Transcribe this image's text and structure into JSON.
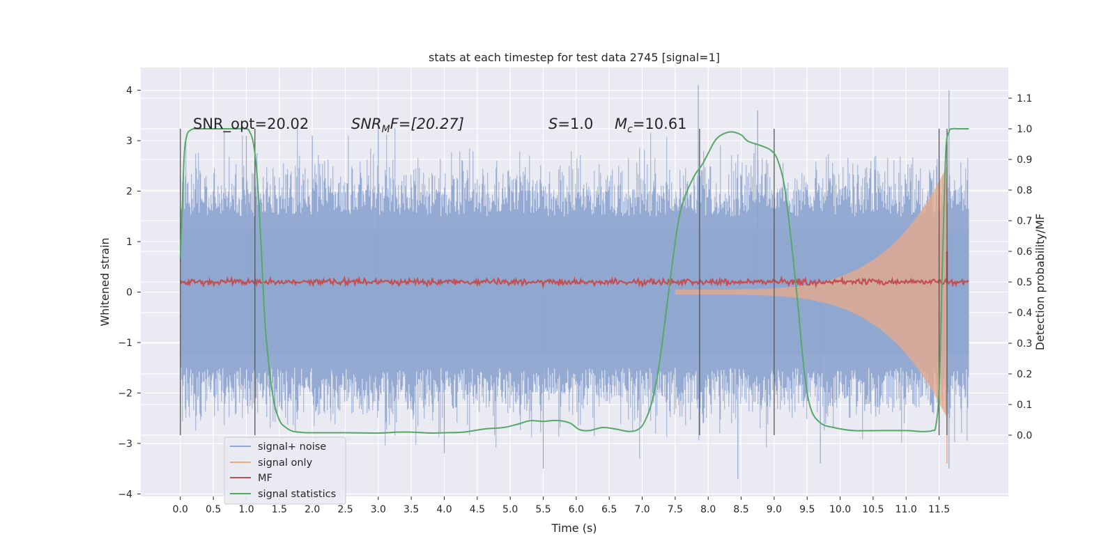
{
  "chart_data": {
    "type": "line",
    "title": "stats at each timestep for test data 2745 [signal=1]",
    "xlabel": "Time (s)",
    "ylabel": "Whitened strain",
    "ylabel_right": "Detection probability/MF",
    "xlim": [
      -0.6,
      12.55
    ],
    "ylim": [
      -4.05,
      4.45
    ],
    "ylim_right": [
      -0.2,
      1.2
    ],
    "x_ticks": [
      "0.0",
      "0.5",
      "1.0",
      "1.5",
      "2.0",
      "2.5",
      "3.0",
      "3.5",
      "4.0",
      "4.5",
      "5.0",
      "5.5",
      "6.0",
      "6.5",
      "7.0",
      "7.5",
      "8.0",
      "8.5",
      "9.0",
      "9.5",
      "10.0",
      "10.5",
      "11.0",
      "11.5"
    ],
    "y_ticks": [
      "4",
      "3",
      "2",
      "1",
      "0",
      "−1",
      "−2",
      "−3",
      "−4"
    ],
    "y_ticks_right": [
      "1.1",
      "1.0",
      "0.9",
      "0.8",
      "0.7",
      "0.6",
      "0.5",
      "0.4",
      "0.3",
      "0.2",
      "0.1",
      "0.0"
    ],
    "annotations": {
      "snr_opt": "SNR_opt=20.02",
      "snr_mf_sym": "SNR",
      "snr_mf_sub": "M",
      "snr_mf_rest": "F=[20.27]",
      "s_sym": "S",
      "s_rest": "=1.0",
      "mc_sym": "M",
      "mc_sub": "c",
      "mc_rest": "=10.61"
    },
    "vertical_lines_x": [
      0.0,
      1.13,
      7.87,
      9.0,
      11.5,
      11.62
    ],
    "legend": [
      {
        "label": "signal+ noise",
        "color": "#8fa6d0"
      },
      {
        "label": "signal only",
        "color": "#e8a98a"
      },
      {
        "label": "MF",
        "color": "#c44e52"
      },
      {
        "label": "signal statistics",
        "color": "#55a868"
      }
    ],
    "series": [
      {
        "name": "signal statistics",
        "axis": "right",
        "color": "#55a868",
        "x": [
          0.0,
          0.03,
          0.06,
          0.1,
          0.15,
          0.2,
          0.3,
          0.5,
          0.8,
          1.0,
          1.05,
          1.1,
          1.15,
          1.2,
          1.25,
          1.3,
          1.4,
          1.5,
          1.6,
          1.7,
          1.8,
          1.9,
          2.0,
          2.2,
          2.5,
          3.0,
          3.3,
          3.5,
          3.8,
          4.0,
          4.3,
          4.6,
          4.9,
          5.1,
          5.3,
          5.5,
          5.7,
          5.9,
          6.05,
          6.2,
          6.4,
          6.6,
          6.8,
          6.95,
          7.05,
          7.15,
          7.25,
          7.35,
          7.45,
          7.55,
          7.65,
          7.8,
          7.9,
          8.0,
          8.1,
          8.2,
          8.35,
          8.5,
          8.6,
          8.8,
          8.95,
          9.05,
          9.15,
          9.25,
          9.35,
          9.45,
          9.55,
          9.7,
          9.9,
          10.2,
          10.6,
          11.0,
          11.2,
          11.3,
          11.4,
          11.45,
          11.5,
          11.55,
          11.6,
          11.65,
          11.7,
          11.8,
          11.95
        ],
        "values": [
          0.58,
          0.75,
          0.92,
          0.98,
          0.995,
          1.0,
          1.0,
          1.0,
          1.0,
          1.0,
          0.99,
          0.96,
          0.88,
          0.72,
          0.5,
          0.32,
          0.13,
          0.05,
          0.025,
          0.013,
          0.01,
          0.008,
          0.008,
          0.008,
          0.008,
          0.007,
          0.01,
          0.01,
          0.007,
          0.008,
          0.01,
          0.02,
          0.025,
          0.035,
          0.047,
          0.045,
          0.048,
          0.04,
          0.018,
          0.015,
          0.025,
          0.02,
          0.012,
          0.02,
          0.05,
          0.11,
          0.22,
          0.38,
          0.55,
          0.7,
          0.78,
          0.85,
          0.88,
          0.92,
          0.96,
          0.98,
          0.99,
          0.98,
          0.96,
          0.945,
          0.93,
          0.9,
          0.82,
          0.65,
          0.45,
          0.22,
          0.09,
          0.04,
          0.025,
          0.015,
          0.015,
          0.015,
          0.012,
          0.012,
          0.015,
          0.03,
          0.15,
          0.55,
          0.92,
          0.99,
          1.0,
          1.0,
          1.0
        ]
      }
    ],
    "noise_series": {
      "name": "signal+ noise",
      "x_range": [
        0.0,
        11.95
      ],
      "envelope": 2.0,
      "peaks": [
        {
          "x": 1.0,
          "y": 3.1
        },
        {
          "x": 2.0,
          "y": 3.1
        },
        {
          "x": 3.0,
          "y": 3.4
        },
        {
          "x": 4.0,
          "y": -3.2
        },
        {
          "x": 5.5,
          "y": -3.5
        },
        {
          "x": 7.85,
          "y": 4.1
        },
        {
          "x": 8.45,
          "y": -3.7
        },
        {
          "x": 8.75,
          "y": 3.6
        },
        {
          "x": 9.7,
          "y": -3.4
        },
        {
          "x": 11.65,
          "y": 4.0
        },
        {
          "x": 11.65,
          "y": -3.5
        }
      ]
    },
    "signal_only": {
      "name": "signal only",
      "x_range": [
        7.5,
        11.62
      ],
      "amplitude_start": 0.05,
      "amplitude_end": 2.5
    },
    "mf_series": {
      "name": "MF",
      "level": 0.5,
      "spike_x": 11.62,
      "spike_value": 0.6
    }
  }
}
